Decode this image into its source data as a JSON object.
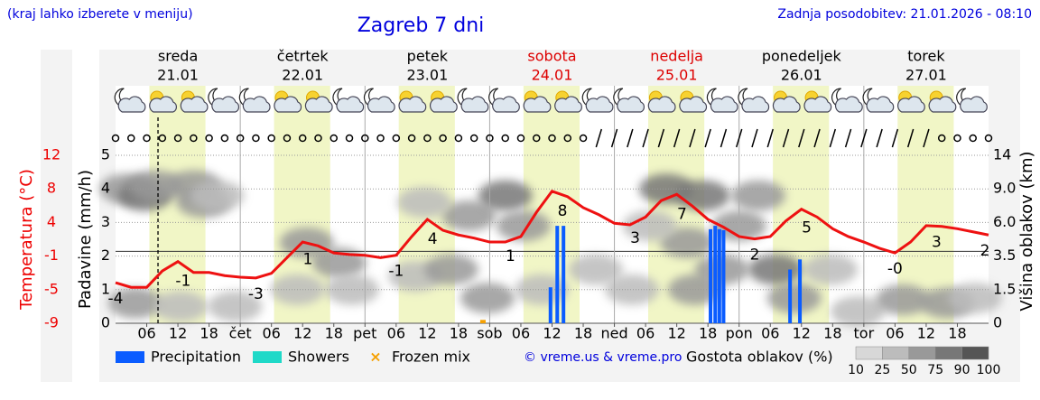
{
  "chart_data": {
    "type": "line",
    "title": "Zagreb 7 dni",
    "subtitle": "(kraj lahko izberete v meniju)",
    "updated": "Zadnja posodobitev: 21.01.2026 - 08:10",
    "days": [
      {
        "name": "sreda",
        "date": "21.01",
        "color": "#000000"
      },
      {
        "name": "četrtek",
        "date": "22.01",
        "color": "#000000"
      },
      {
        "name": "petek",
        "date": "23.01",
        "color": "#000000"
      },
      {
        "name": "sobota",
        "date": "24.01",
        "color": "#dd0000"
      },
      {
        "name": "nedelja",
        "date": "25.01",
        "color": "#dd0000"
      },
      {
        "name": "ponedeljek",
        "date": "26.01",
        "color": "#000000"
      },
      {
        "name": "torek",
        "date": "27.01",
        "color": "#000000"
      }
    ],
    "xlim": [
      0,
      168
    ],
    "xticks": [
      {
        "value": 6,
        "label": "06"
      },
      12,
      18,
      {
        "value": 24,
        "label": "čet"
      },
      {
        "value": 30,
        "label": "06"
      },
      {
        "value": 36,
        "label": "12"
      },
      {
        "value": 42,
        "label": "18"
      },
      {
        "value": 48,
        "label": "pet"
      },
      {
        "value": 54,
        "label": "06"
      },
      {
        "value": 60,
        "label": "12"
      },
      {
        "value": 66,
        "label": "18"
      },
      {
        "value": 72,
        "label": "sob"
      },
      {
        "value": 78,
        "label": "06"
      },
      {
        "value": 84,
        "label": "12"
      },
      {
        "value": 90,
        "label": "18"
      },
      {
        "value": 96,
        "label": "ned"
      },
      {
        "value": 102,
        "label": "06"
      },
      {
        "value": 108,
        "label": "12"
      },
      {
        "value": 114,
        "label": "18"
      },
      {
        "value": 120,
        "label": "pon"
      },
      {
        "value": 126,
        "label": "06"
      },
      {
        "value": 132,
        "label": "12"
      },
      {
        "value": 138,
        "label": "18"
      },
      {
        "value": 144,
        "label": "tor"
      },
      {
        "value": 150,
        "label": "06"
      },
      {
        "value": 156,
        "label": "12"
      },
      {
        "value": 162,
        "label": "18"
      }
    ],
    "now": 8.17,
    "daylight": [
      6.5,
      17.3
    ],
    "ylabel": "Temperatura (°C)",
    "ylim": [
      -9.2,
      12.3
    ],
    "yticks": [
      {
        "value": -9.2,
        "label": "-9"
      },
      {
        "value": -4.9,
        "label": "-5"
      },
      {
        "value": -0.6,
        "label": "-1"
      },
      {
        "value": 3.7,
        "label": "4"
      },
      {
        "value": 8.0,
        "label": "8"
      },
      {
        "value": 12.3,
        "label": "12"
      }
    ],
    "y_color": "#ee0000",
    "zero_line": true,
    "y2label": "Padavine (mm/h)",
    "y2lim": [
      0,
      5
    ],
    "y2ticks": [
      0,
      1,
      2,
      3,
      4,
      5
    ],
    "y3label": "Višina oblakov (km)",
    "y3ticks": [
      0,
      1.5,
      3.5,
      {
        "value": 6,
        "label": "6.0"
      },
      {
        "value": 9,
        "label": "9.0"
      },
      14
    ],
    "grid": true,
    "temperature": {
      "color": "#ee1111",
      "x": [
        0,
        3,
        6,
        9,
        12,
        15,
        18,
        21,
        24,
        27,
        30,
        33,
        36,
        39,
        42,
        45,
        48,
        51,
        54,
        57,
        60,
        63,
        66,
        69,
        72,
        75,
        78,
        81,
        84,
        87,
        90,
        93,
        96,
        99,
        102,
        105,
        108,
        111,
        114,
        117,
        120,
        123,
        126,
        129,
        132,
        135,
        138,
        141,
        144,
        147,
        150,
        153,
        156,
        159,
        162,
        165,
        168
      ],
      "values": [
        -4.0,
        -4.6,
        -4.6,
        -2.5,
        -1.3,
        -2.7,
        -2.7,
        -3.1,
        -3.3,
        -3.4,
        -2.8,
        -0.8,
        1.2,
        0.7,
        -0.2,
        -0.4,
        -0.5,
        -0.8,
        -0.5,
        1.9,
        4.1,
        2.7,
        2.1,
        1.7,
        1.2,
        1.2,
        1.9,
        5.0,
        7.7,
        7.0,
        5.6,
        4.7,
        3.6,
        3.4,
        4.4,
        6.5,
        7.3,
        5.8,
        4.1,
        3.1,
        1.9,
        1.6,
        1.9,
        3.9,
        5.4,
        4.4,
        2.9,
        1.9,
        1.2,
        0.4,
        -0.2,
        1.2,
        3.3,
        3.2,
        2.9,
        2.5,
        2.1
      ]
    },
    "temp_labels": {
      "x": [
        0,
        13,
        27,
        37,
        54,
        61,
        76,
        86,
        100,
        109,
        123,
        133,
        150,
        158,
        168
      ],
      "labels": [
        "-4",
        "-1",
        "-3",
        "1",
        "-1",
        "4",
        "1",
        "8",
        "3",
        "7",
        "2",
        "5",
        "-0",
        "3",
        "2"
      ]
    },
    "precipitation": {
      "name": "Precipitation",
      "color": "#0a5cff",
      "axis": "y2",
      "x": [
        83.7,
        85.0,
        86.2,
        114.5,
        115.4,
        116.2,
        117.0,
        129.8,
        131.7
      ],
      "values": [
        1.07,
        2.9,
        2.9,
        2.8,
        2.9,
        2.8,
        2.77,
        1.6,
        1.9
      ]
    },
    "showers": {
      "name": "Showers",
      "color": "#1fd9c8"
    },
    "frozen_mix": {
      "name": "Frozen mix",
      "color": "#f5a000",
      "x": [
        70.7
      ],
      "values": [
        0.1
      ]
    },
    "cloud_cover": {
      "x": [
        2.1,
        5.6,
        7.6,
        15.1,
        16.9,
        19.5,
        3.8,
        12.5,
        23,
        36.8,
        43,
        45.5,
        35,
        57.7,
        64.6,
        68,
        75,
        78.5,
        71.6,
        82,
        59.4,
        92.4,
        99.4,
        106,
        113,
        110,
        111.5,
        116.7,
        123.7,
        127,
        130.6,
        137.6,
        142.8,
        151.5,
        160,
        165.4,
        102.8,
        120
      ],
      "level": [
        4.0,
        3.8,
        4.1,
        4.1,
        3.6,
        3.8,
        0.6,
        0.5,
        0.5,
        2.4,
        1.8,
        1.0,
        1.0,
        1.4,
        1.6,
        3.2,
        3.8,
        2.9,
        0.75,
        1.0,
        3.6,
        1.6,
        1.0,
        4.0,
        3.8,
        2.4,
        1.0,
        1.6,
        3.8,
        1.6,
        0.75,
        1.6,
        0.35,
        0.7,
        0.6,
        0.75,
        2.9,
        2.9
      ],
      "values": [
        70,
        80,
        60,
        75,
        60,
        50,
        55,
        40,
        35,
        55,
        75,
        50,
        40,
        45,
        55,
        65,
        80,
        75,
        60,
        50,
        40,
        40,
        45,
        85,
        85,
        60,
        70,
        60,
        75,
        80,
        75,
        45,
        40,
        65,
        55,
        45,
        50,
        55
      ]
    },
    "credit": "© vreme.us & vreme.pro",
    "cloud_legend_title": "Gostota oblakov (%)",
    "cloud_legend_ticks": [
      10,
      25,
      50,
      75,
      90,
      100
    ],
    "cloud_colors": [
      "#d8d8d8",
      "#bcbcbc",
      "#999999",
      "#777777",
      "#555555"
    ]
  }
}
